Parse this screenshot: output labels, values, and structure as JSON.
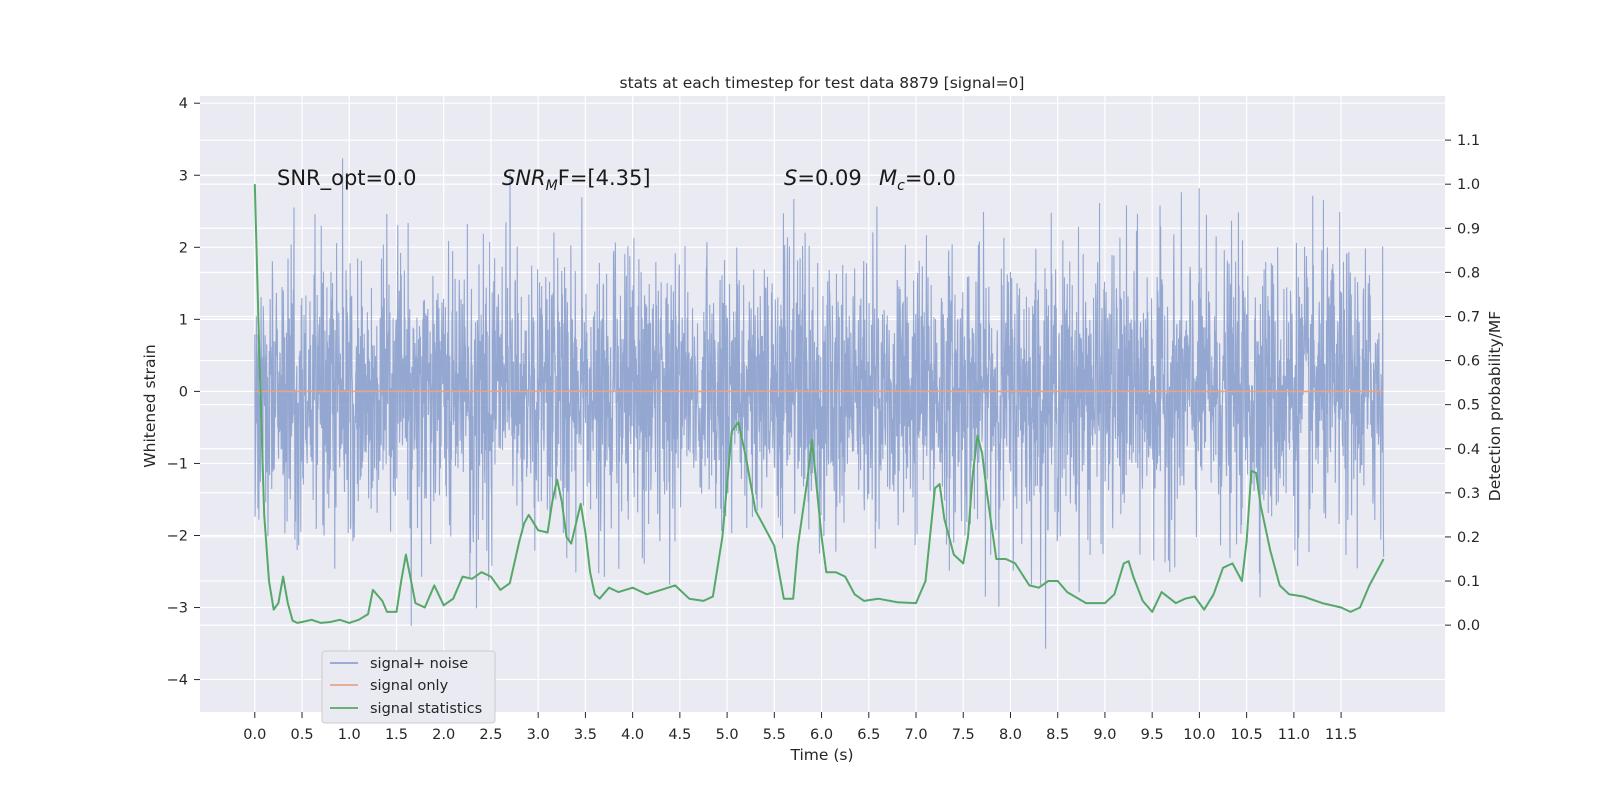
{
  "chart_data": {
    "type": "line",
    "title": "stats at each timestep for test data 8879 [signal=0]",
    "xlabel": "Time (s)",
    "ylabel_left": "Whitened strain",
    "ylabel_right": "Detection probability/MF",
    "xlim": [
      -0.58,
      12.6
    ],
    "ylim_left": [
      -4.45,
      4.1
    ],
    "ylim_right": [
      -0.197,
      1.2
    ],
    "x_ticks": [
      0.0,
      0.5,
      1.0,
      1.5,
      2.0,
      2.5,
      3.0,
      3.5,
      4.0,
      4.5,
      5.0,
      5.5,
      6.0,
      6.5,
      7.0,
      7.5,
      8.0,
      8.5,
      9.0,
      9.5,
      10.0,
      10.5,
      11.0,
      11.5
    ],
    "x_tick_labels": [
      "0.0",
      "0.5",
      "1.0",
      "1.5",
      "2.0",
      "2.5",
      "3.0",
      "3.5",
      "4.0",
      "4.5",
      "5.0",
      "5.5",
      "6.0",
      "6.5",
      "7.0",
      "7.5",
      "8.0",
      "8.5",
      "9.0",
      "9.5",
      "10.0",
      "10.5",
      "11.0",
      "11.5"
    ],
    "y_left_ticks": [
      -4,
      -3,
      -2,
      -1,
      0,
      1,
      2,
      3,
      4
    ],
    "y_left_tick_labels": [
      "−4",
      "−3",
      "−2",
      "−1",
      "0",
      "1",
      "2",
      "3",
      "4"
    ],
    "y_right_ticks": [
      0.0,
      0.1,
      0.2,
      0.3,
      0.4,
      0.5,
      0.6,
      0.7,
      0.8,
      0.9,
      1.0,
      1.1
    ],
    "y_right_tick_labels": [
      "0.0",
      "0.1",
      "0.2",
      "0.3",
      "0.4",
      "0.5",
      "0.6",
      "0.7",
      "0.8",
      "0.9",
      "1.0",
      "1.1"
    ],
    "grid": true,
    "legend_placement": "lower-left",
    "annotations": {
      "snr_opt": "SNR_opt=0.0",
      "snr_mf_main": "SNR",
      "snr_mf_sub": "M",
      "snr_mf_rest": "F=[4.35]",
      "s_main": "S",
      "s_rest": "=0.09",
      "mc_main": "M",
      "mc_sub": "c",
      "mc_rest": "=0.0"
    },
    "series": [
      {
        "name": "signal+ noise",
        "axis": "left",
        "color": "#8fa3cf",
        "note_range": [
          0.0,
          11.95
        ],
        "envelope_typical": [
          -1.7,
          1.7
        ],
        "envelope_extreme": [
          -4.1,
          3.75
        ]
      },
      {
        "name": "signal only",
        "axis": "left",
        "color": "#e6a68a",
        "x": [
          0.0,
          11.95
        ],
        "y": [
          0.0,
          0.0
        ]
      },
      {
        "name": "signal statistics",
        "axis": "right",
        "color": "#55a868",
        "x": [
          0.0,
          0.05,
          0.1,
          0.15,
          0.2,
          0.25,
          0.3,
          0.35,
          0.4,
          0.45,
          0.5,
          0.6,
          0.7,
          0.8,
          0.9,
          1.0,
          1.1,
          1.2,
          1.25,
          1.35,
          1.4,
          1.5,
          1.55,
          1.6,
          1.7,
          1.8,
          1.9,
          2.0,
          2.1,
          2.2,
          2.3,
          2.4,
          2.5,
          2.6,
          2.7,
          2.8,
          2.85,
          2.9,
          3.0,
          3.1,
          3.15,
          3.2,
          3.25,
          3.3,
          3.35,
          3.45,
          3.5,
          3.55,
          3.6,
          3.65,
          3.75,
          3.85,
          4.0,
          4.15,
          4.3,
          4.45,
          4.6,
          4.75,
          4.85,
          4.95,
          5.05,
          5.12,
          5.2,
          5.3,
          5.4,
          5.5,
          5.6,
          5.7,
          5.75,
          5.85,
          5.9,
          5.95,
          6.0,
          6.05,
          6.15,
          6.25,
          6.35,
          6.45,
          6.6,
          6.8,
          7.0,
          7.1,
          7.2,
          7.25,
          7.3,
          7.4,
          7.5,
          7.55,
          7.6,
          7.65,
          7.7,
          7.75,
          7.85,
          7.95,
          8.05,
          8.2,
          8.3,
          8.4,
          8.5,
          8.6,
          8.8,
          9.0,
          9.1,
          9.2,
          9.25,
          9.3,
          9.4,
          9.5,
          9.6,
          9.75,
          9.85,
          9.95,
          10.05,
          10.15,
          10.25,
          10.35,
          10.45,
          10.5,
          10.55,
          10.6,
          10.65,
          10.75,
          10.85,
          10.95,
          11.1,
          11.3,
          11.5,
          11.6,
          11.7,
          11.8,
          11.95
        ],
        "y": [
          1.0,
          0.6,
          0.25,
          0.1,
          0.035,
          0.05,
          0.11,
          0.05,
          0.01,
          0.005,
          0.007,
          0.012,
          0.005,
          0.007,
          0.012,
          0.005,
          0.012,
          0.025,
          0.08,
          0.055,
          0.03,
          0.03,
          0.1,
          0.16,
          0.05,
          0.04,
          0.09,
          0.045,
          0.06,
          0.11,
          0.105,
          0.12,
          0.11,
          0.08,
          0.095,
          0.19,
          0.23,
          0.25,
          0.215,
          0.21,
          0.28,
          0.33,
          0.28,
          0.2,
          0.185,
          0.275,
          0.21,
          0.12,
          0.07,
          0.06,
          0.085,
          0.075,
          0.085,
          0.07,
          0.08,
          0.09,
          0.06,
          0.055,
          0.065,
          0.2,
          0.44,
          0.46,
          0.38,
          0.26,
          0.22,
          0.18,
          0.06,
          0.06,
          0.18,
          0.33,
          0.42,
          0.31,
          0.2,
          0.12,
          0.12,
          0.11,
          0.07,
          0.055,
          0.06,
          0.052,
          0.05,
          0.1,
          0.31,
          0.32,
          0.24,
          0.16,
          0.14,
          0.2,
          0.34,
          0.43,
          0.39,
          0.3,
          0.15,
          0.15,
          0.14,
          0.09,
          0.085,
          0.1,
          0.1,
          0.075,
          0.05,
          0.05,
          0.07,
          0.14,
          0.145,
          0.11,
          0.055,
          0.03,
          0.075,
          0.05,
          0.06,
          0.065,
          0.035,
          0.07,
          0.13,
          0.14,
          0.1,
          0.19,
          0.35,
          0.345,
          0.27,
          0.17,
          0.09,
          0.07,
          0.065,
          0.05,
          0.04,
          0.03,
          0.04,
          0.09,
          0.15
        ]
      }
    ]
  }
}
